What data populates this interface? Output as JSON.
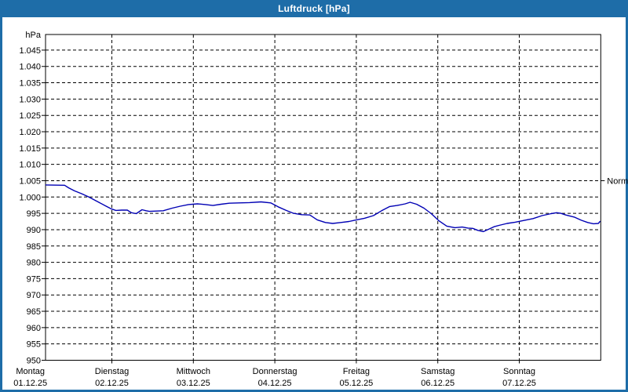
{
  "window": {
    "title": "Luftdruck [hPa]",
    "frame_color": "#1e6da8",
    "titlebar_text_color": "#ffffff",
    "panel_color": "#ffffff"
  },
  "chart_data": {
    "type": "line",
    "title": "Luftdruck [hPa]",
    "unit_label": "hPa",
    "grid": "dashed",
    "grid_color": "#000000",
    "text_color": "#000000",
    "legend_position": "none",
    "y_axis": {
      "min": 950,
      "max": 1050,
      "tick_step": 5,
      "tick_max_label_value": 1045,
      "tick_labels": [
        "1.045",
        "1.040",
        "1.035",
        "1.030",
        "1.025",
        "1.020",
        "1.015",
        "1.010",
        "1.005",
        "1.000",
        "995",
        "990",
        "985",
        "980",
        "975",
        "970",
        "965",
        "960",
        "955",
        "950"
      ]
    },
    "x_axis": {
      "days": [
        {
          "name": "Montag",
          "date": "01.12.25"
        },
        {
          "name": "Dienstag",
          "date": "02.12.25"
        },
        {
          "name": "Mittwoch",
          "date": "03.12.25"
        },
        {
          "name": "Donnerstag",
          "date": "04.12.25"
        },
        {
          "name": "Freitag",
          "date": "05.12.25"
        },
        {
          "name": "Samstag",
          "date": "06.12.25"
        },
        {
          "name": "Sonntag",
          "date": "07.12.25"
        }
      ]
    },
    "normal_marker": {
      "label": "Normal",
      "value": 1005
    },
    "series": [
      {
        "name": "Luftdruck",
        "color": "#0000b4",
        "points_unit": "[days_since_monday_00h, hPa]",
        "points": [
          [
            0.19,
            1003.7
          ],
          [
            0.42,
            1003.6
          ],
          [
            0.47,
            1002.8
          ],
          [
            0.54,
            1001.9
          ],
          [
            0.63,
            1001.0
          ],
          [
            0.71,
            1000.1
          ],
          [
            0.83,
            998.5
          ],
          [
            0.93,
            997.2
          ],
          [
            0.99,
            996.4
          ],
          [
            1.05,
            995.9
          ],
          [
            1.12,
            996.0
          ],
          [
            1.19,
            996.0
          ],
          [
            1.24,
            995.2
          ],
          [
            1.3,
            994.9
          ],
          [
            1.37,
            996.1
          ],
          [
            1.42,
            995.8
          ],
          [
            1.46,
            995.6
          ],
          [
            1.55,
            995.7
          ],
          [
            1.63,
            995.8
          ],
          [
            1.74,
            996.6
          ],
          [
            1.84,
            997.2
          ],
          [
            1.94,
            997.7
          ],
          [
            2.05,
            997.9
          ],
          [
            2.15,
            997.7
          ],
          [
            2.24,
            997.4
          ],
          [
            2.34,
            997.8
          ],
          [
            2.44,
            998.1
          ],
          [
            2.56,
            998.2
          ],
          [
            2.69,
            998.3
          ],
          [
            2.83,
            998.5
          ],
          [
            2.95,
            998.2
          ],
          [
            3.04,
            997.0
          ],
          [
            3.14,
            995.9
          ],
          [
            3.23,
            995.0
          ],
          [
            3.33,
            994.6
          ],
          [
            3.43,
            994.5
          ],
          [
            3.52,
            993.0
          ],
          [
            3.62,
            992.2
          ],
          [
            3.71,
            991.9
          ],
          [
            3.81,
            992.2
          ],
          [
            3.91,
            992.5
          ],
          [
            3.98,
            992.9
          ],
          [
            4.1,
            993.5
          ],
          [
            4.21,
            994.3
          ],
          [
            4.31,
            995.8
          ],
          [
            4.41,
            997.1
          ],
          [
            4.5,
            997.4
          ],
          [
            4.6,
            997.9
          ],
          [
            4.66,
            998.4
          ],
          [
            4.74,
            997.8
          ],
          [
            4.83,
            996.6
          ],
          [
            4.92,
            994.9
          ],
          [
            5.01,
            992.8
          ],
          [
            5.11,
            991.1
          ],
          [
            5.21,
            990.6
          ],
          [
            5.3,
            990.8
          ],
          [
            5.37,
            990.5
          ],
          [
            5.43,
            990.4
          ],
          [
            5.49,
            989.8
          ],
          [
            5.56,
            989.4
          ],
          [
            5.63,
            990.2
          ],
          [
            5.69,
            990.9
          ],
          [
            5.75,
            991.3
          ],
          [
            5.85,
            991.9
          ],
          [
            5.95,
            992.3
          ],
          [
            6.05,
            992.8
          ],
          [
            6.17,
            993.4
          ],
          [
            6.28,
            994.3
          ],
          [
            6.39,
            994.9
          ],
          [
            6.46,
            995.2
          ],
          [
            6.51,
            995.0
          ],
          [
            6.57,
            994.5
          ],
          [
            6.68,
            993.8
          ],
          [
            6.76,
            992.9
          ],
          [
            6.84,
            992.2
          ],
          [
            6.91,
            991.8
          ],
          [
            6.97,
            991.9
          ],
          [
            6.99,
            992.5
          ]
        ]
      }
    ]
  }
}
